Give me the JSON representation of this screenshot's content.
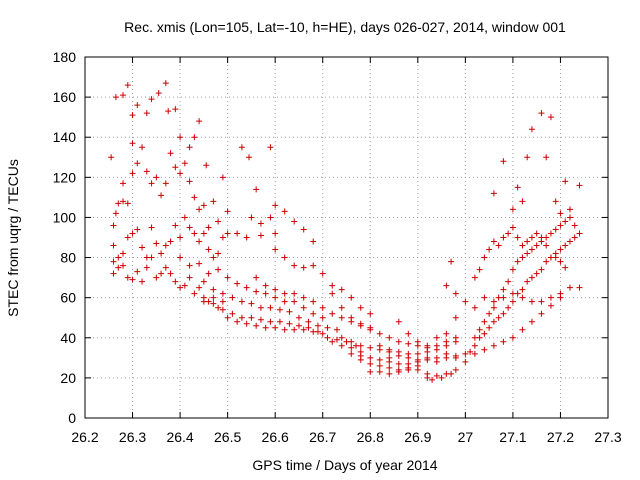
{
  "chart_data": {
    "type": "scatter",
    "title": "Rec. xmis (Lon=105, Lat=-10, h=HE), days 026-027, 2014, window 001",
    "xlabel": "GPS time / Days of year 2014",
    "ylabel": "STEC from uqrg / TECUs",
    "xlim": [
      26.2,
      27.3
    ],
    "ylim": [
      0,
      180
    ],
    "xticks": [
      "26.2",
      "26.3",
      "26.4",
      "26.5",
      "26.6",
      "26.7",
      "26.8",
      "26.9",
      "27",
      "27.1",
      "27.2",
      "27.3"
    ],
    "yticks": [
      "0",
      "20",
      "40",
      "60",
      "80",
      "100",
      "120",
      "140",
      "160",
      "180"
    ],
    "grid": true,
    "marker": "+",
    "color": "#cc0000",
    "points": [
      [
        26.255,
        130
      ],
      [
        26.265,
        160
      ],
      [
        26.28,
        161
      ],
      [
        26.29,
        166
      ],
      [
        26.3,
        151
      ],
      [
        26.3,
        137
      ],
      [
        26.31,
        156
      ],
      [
        26.33,
        152
      ],
      [
        26.34,
        159
      ],
      [
        26.355,
        162
      ],
      [
        26.37,
        167
      ],
      [
        26.375,
        153
      ],
      [
        26.39,
        154
      ],
      [
        26.4,
        140
      ],
      [
        26.42,
        135
      ],
      [
        26.43,
        140
      ],
      [
        26.44,
        148
      ],
      [
        26.455,
        126
      ],
      [
        26.47,
        108
      ],
      [
        26.49,
        120
      ],
      [
        26.5,
        103
      ],
      [
        26.53,
        135
      ],
      [
        26.545,
        130
      ],
      [
        26.56,
        114
      ],
      [
        26.59,
        135
      ],
      [
        26.5,
        92
      ],
      [
        26.52,
        92
      ],
      [
        26.54,
        90
      ],
      [
        26.57,
        91
      ],
      [
        26.6,
        92
      ],
      [
        26.26,
        96
      ],
      [
        26.26,
        86
      ],
      [
        26.265,
        102
      ],
      [
        26.27,
        107
      ],
      [
        26.28,
        117
      ],
      [
        26.28,
        108
      ],
      [
        26.29,
        107
      ],
      [
        26.3,
        122
      ],
      [
        26.31,
        127
      ],
      [
        26.32,
        135
      ],
      [
        26.33,
        123
      ],
      [
        26.34,
        117
      ],
      [
        26.35,
        120
      ],
      [
        26.36,
        111
      ],
      [
        26.37,
        117
      ],
      [
        26.38,
        132
      ],
      [
        26.39,
        125
      ],
      [
        26.4,
        122
      ],
      [
        26.41,
        127
      ],
      [
        26.42,
        118
      ],
      [
        26.43,
        110
      ],
      [
        26.44,
        104
      ],
      [
        26.45,
        106
      ],
      [
        26.46,
        95
      ],
      [
        26.48,
        98
      ],
      [
        26.26,
        78
      ],
      [
        26.27,
        80
      ],
      [
        26.28,
        76
      ],
      [
        26.29,
        90
      ],
      [
        26.3,
        92
      ],
      [
        26.31,
        94
      ],
      [
        26.32,
        85
      ],
      [
        26.33,
        80
      ],
      [
        26.34,
        95
      ],
      [
        26.35,
        87
      ],
      [
        26.36,
        82
      ],
      [
        26.37,
        86
      ],
      [
        26.38,
        88
      ],
      [
        26.39,
        96
      ],
      [
        26.4,
        90
      ],
      [
        26.41,
        100
      ],
      [
        26.42,
        95
      ],
      [
        26.43,
        92
      ],
      [
        26.44,
        88
      ],
      [
        26.45,
        92
      ],
      [
        26.46,
        84
      ],
      [
        26.47,
        80
      ],
      [
        26.48,
        82
      ],
      [
        26.49,
        90
      ],
      [
        26.26,
        72
      ],
      [
        26.27,
        75
      ],
      [
        26.28,
        82
      ],
      [
        26.29,
        70
      ],
      [
        26.3,
        69
      ],
      [
        26.31,
        73
      ],
      [
        26.32,
        68
      ],
      [
        26.33,
        75
      ],
      [
        26.34,
        80
      ],
      [
        26.35,
        70
      ],
      [
        26.36,
        72
      ],
      [
        26.37,
        75
      ],
      [
        26.38,
        72
      ],
      [
        26.39,
        68
      ],
      [
        26.4,
        65
      ],
      [
        26.41,
        66
      ],
      [
        26.42,
        70
      ],
      [
        26.43,
        62
      ],
      [
        26.44,
        65
      ],
      [
        26.45,
        60
      ],
      [
        26.46,
        58
      ],
      [
        26.47,
        60
      ],
      [
        26.48,
        55
      ],
      [
        26.49,
        58
      ],
      [
        26.4,
        80
      ],
      [
        26.42,
        76
      ],
      [
        26.44,
        77
      ],
      [
        26.46,
        72
      ],
      [
        26.48,
        74
      ],
      [
        26.5,
        70
      ],
      [
        26.52,
        67
      ],
      [
        26.54,
        65
      ],
      [
        26.56,
        63
      ],
      [
        26.58,
        62
      ],
      [
        26.6,
        60
      ],
      [
        26.62,
        58
      ],
      [
        26.64,
        58
      ],
      [
        26.66,
        55
      ],
      [
        26.68,
        52
      ],
      [
        26.7,
        50
      ],
      [
        26.45,
        68
      ],
      [
        26.47,
        64
      ],
      [
        26.49,
        62
      ],
      [
        26.51,
        60
      ],
      [
        26.53,
        58
      ],
      [
        26.55,
        57
      ],
      [
        26.57,
        55
      ],
      [
        26.59,
        55
      ],
      [
        26.61,
        54
      ],
      [
        26.63,
        53
      ],
      [
        26.65,
        50
      ],
      [
        26.67,
        48
      ],
      [
        26.69,
        46
      ],
      [
        26.71,
        45
      ],
      [
        26.73,
        44
      ],
      [
        26.45,
        58
      ],
      [
        26.47,
        57
      ],
      [
        26.49,
        54
      ],
      [
        26.51,
        52
      ],
      [
        26.53,
        50
      ],
      [
        26.55,
        50
      ],
      [
        26.57,
        49
      ],
      [
        26.59,
        48
      ],
      [
        26.61,
        48
      ],
      [
        26.63,
        47
      ],
      [
        26.65,
        46
      ],
      [
        26.67,
        45
      ],
      [
        26.69,
        43
      ],
      [
        26.71,
        40
      ],
      [
        26.73,
        39
      ],
      [
        26.75,
        38
      ],
      [
        26.77,
        36
      ],
      [
        26.5,
        50
      ],
      [
        26.52,
        48
      ],
      [
        26.54,
        47
      ],
      [
        26.56,
        46
      ],
      [
        26.58,
        45
      ],
      [
        26.6,
        45
      ],
      [
        26.62,
        44
      ],
      [
        26.64,
        44
      ],
      [
        26.66,
        44
      ],
      [
        26.68,
        43
      ],
      [
        26.7,
        42
      ],
      [
        26.72,
        38
      ],
      [
        26.74,
        36
      ],
      [
        26.76,
        35
      ],
      [
        26.78,
        33
      ],
      [
        26.55,
        100
      ],
      [
        26.57,
        97
      ],
      [
        26.59,
        100
      ],
      [
        26.6,
        106
      ],
      [
        26.62,
        103
      ],
      [
        26.64,
        98
      ],
      [
        26.66,
        94
      ],
      [
        26.68,
        88
      ],
      [
        26.6,
        84
      ],
      [
        26.62,
        80
      ],
      [
        26.64,
        76
      ],
      [
        26.66,
        75
      ],
      [
        26.68,
        76
      ],
      [
        26.7,
        72
      ],
      [
        26.72,
        66
      ],
      [
        26.74,
        64
      ],
      [
        26.76,
        60
      ],
      [
        26.78,
        55
      ],
      [
        26.8,
        52
      ],
      [
        26.56,
        70
      ],
      [
        26.58,
        66
      ],
      [
        26.6,
        64
      ],
      [
        26.62,
        62
      ],
      [
        26.64,
        62
      ],
      [
        26.66,
        60
      ],
      [
        26.68,
        58
      ],
      [
        26.7,
        55
      ],
      [
        26.72,
        52
      ],
      [
        26.74,
        50
      ],
      [
        26.76,
        48
      ],
      [
        26.78,
        46
      ],
      [
        26.8,
        44
      ],
      [
        26.72,
        62
      ],
      [
        26.74,
        55
      ],
      [
        26.76,
        50
      ],
      [
        26.78,
        47
      ],
      [
        26.8,
        45
      ],
      [
        26.82,
        42
      ],
      [
        26.84,
        40
      ],
      [
        26.86,
        38
      ],
      [
        26.88,
        37
      ],
      [
        26.9,
        36
      ],
      [
        26.92,
        35
      ],
      [
        26.94,
        36
      ],
      [
        26.96,
        38
      ],
      [
        26.98,
        40
      ],
      [
        26.74,
        40
      ],
      [
        26.76,
        38
      ],
      [
        26.78,
        36
      ],
      [
        26.8,
        35
      ],
      [
        26.82,
        34
      ],
      [
        26.84,
        33
      ],
      [
        26.86,
        33
      ],
      [
        26.88,
        32
      ],
      [
        26.9,
        32
      ],
      [
        26.92,
        33
      ],
      [
        26.94,
        34
      ],
      [
        26.96,
        36
      ],
      [
        26.98,
        38
      ],
      [
        26.76,
        32
      ],
      [
        26.78,
        31
      ],
      [
        26.8,
        30
      ],
      [
        26.82,
        29
      ],
      [
        26.84,
        28
      ],
      [
        26.86,
        27
      ],
      [
        26.88,
        27
      ],
      [
        26.9,
        28
      ],
      [
        26.92,
        29
      ],
      [
        26.94,
        30
      ],
      [
        26.96,
        32
      ],
      [
        26.78,
        29
      ],
      [
        26.8,
        27
      ],
      [
        26.82,
        26
      ],
      [
        26.84,
        25
      ],
      [
        26.86,
        24
      ],
      [
        26.88,
        24
      ],
      [
        26.9,
        24
      ],
      [
        26.92,
        22
      ],
      [
        26.94,
        21
      ],
      [
        26.96,
        22
      ],
      [
        26.98,
        24
      ],
      [
        26.8,
        23
      ],
      [
        26.82,
        23
      ],
      [
        26.84,
        22
      ],
      [
        26.86,
        23
      ],
      [
        26.88,
        25
      ],
      [
        26.9,
        26
      ],
      [
        26.92,
        20
      ],
      [
        26.93,
        19
      ],
      [
        26.95,
        20
      ],
      [
        26.97,
        22
      ],
      [
        26.82,
        36
      ],
      [
        26.84,
        34
      ],
      [
        26.86,
        48
      ],
      [
        26.88,
        42
      ],
      [
        26.9,
        38
      ],
      [
        26.92,
        36
      ],
      [
        26.94,
        40
      ],
      [
        26.96,
        42
      ],
      [
        26.98,
        50
      ],
      [
        26.84,
        30
      ],
      [
        26.86,
        31
      ],
      [
        26.88,
        30
      ],
      [
        26.9,
        29
      ],
      [
        26.92,
        30
      ],
      [
        26.94,
        28
      ],
      [
        26.96,
        30
      ],
      [
        26.98,
        31
      ],
      [
        26.96,
        66
      ],
      [
        26.97,
        78
      ],
      [
        26.98,
        62
      ],
      [
        27.0,
        58
      ],
      [
        27.02,
        55
      ],
      [
        27.04,
        60
      ],
      [
        27.06,
        58
      ],
      [
        27.08,
        60
      ],
      [
        27.1,
        62
      ],
      [
        27.12,
        60
      ],
      [
        27.14,
        58
      ],
      [
        27.16,
        58
      ],
      [
        27.18,
        60
      ],
      [
        27.2,
        62
      ],
      [
        27.22,
        65
      ],
      [
        27.24,
        65
      ],
      [
        27.0,
        32
      ],
      [
        27.01,
        33
      ],
      [
        27.02,
        36
      ],
      [
        27.03,
        40
      ],
      [
        27.04,
        42
      ],
      [
        27.05,
        45
      ],
      [
        27.06,
        48
      ],
      [
        27.07,
        50
      ],
      [
        27.08,
        52
      ],
      [
        27.09,
        55
      ],
      [
        27.1,
        58
      ],
      [
        27.11,
        62
      ],
      [
        27.12,
        64
      ],
      [
        27.13,
        68
      ],
      [
        27.14,
        70
      ],
      [
        27.15,
        72
      ],
      [
        27.16,
        74
      ],
      [
        27.17,
        78
      ],
      [
        27.18,
        80
      ],
      [
        27.19,
        80
      ],
      [
        27.2,
        84
      ],
      [
        27.21,
        86
      ],
      [
        27.22,
        88
      ],
      [
        27.23,
        90
      ],
      [
        27.24,
        92
      ],
      [
        27.02,
        40
      ],
      [
        27.03,
        44
      ],
      [
        27.04,
        48
      ],
      [
        27.05,
        52
      ],
      [
        27.06,
        55
      ],
      [
        27.07,
        60
      ],
      [
        27.08,
        64
      ],
      [
        27.09,
        68
      ],
      [
        27.1,
        74
      ],
      [
        27.11,
        78
      ],
      [
        27.12,
        80
      ],
      [
        27.13,
        82
      ],
      [
        27.14,
        84
      ],
      [
        27.15,
        86
      ],
      [
        27.16,
        88
      ],
      [
        27.17,
        90
      ],
      [
        27.18,
        92
      ],
      [
        27.19,
        94
      ],
      [
        27.2,
        96
      ],
      [
        27.21,
        98
      ],
      [
        27.22,
        100
      ],
      [
        27.02,
        70
      ],
      [
        27.03,
        74
      ],
      [
        27.04,
        80
      ],
      [
        27.05,
        84
      ],
      [
        27.06,
        88
      ],
      [
        27.07,
        86
      ],
      [
        27.08,
        90
      ],
      [
        27.09,
        92
      ],
      [
        27.1,
        95
      ],
      [
        27.11,
        90
      ],
      [
        27.12,
        86
      ],
      [
        27.13,
        88
      ],
      [
        27.14,
        90
      ],
      [
        27.15,
        92
      ],
      [
        27.16,
        90
      ],
      [
        27.17,
        86
      ],
      [
        27.18,
        80
      ],
      [
        27.19,
        82
      ],
      [
        27.2,
        78
      ],
      [
        27.21,
        75
      ],
      [
        27.06,
        112
      ],
      [
        27.08,
        128
      ],
      [
        27.1,
        104
      ],
      [
        27.11,
        115
      ],
      [
        27.12,
        108
      ],
      [
        27.13,
        130
      ],
      [
        27.14,
        144
      ],
      [
        27.16,
        152
      ],
      [
        27.17,
        130
      ],
      [
        27.18,
        150
      ],
      [
        27.19,
        108
      ],
      [
        27.2,
        102
      ],
      [
        27.21,
        118
      ],
      [
        27.22,
        104
      ],
      [
        27.23,
        96
      ],
      [
        27.24,
        116
      ],
      [
        26.98,
        30
      ],
      [
        27.0,
        28
      ],
      [
        27.02,
        32
      ],
      [
        27.04,
        34
      ],
      [
        27.06,
        36
      ],
      [
        27.08,
        38
      ],
      [
        27.1,
        40
      ],
      [
        27.12,
        44
      ],
      [
        27.14,
        48
      ],
      [
        27.16,
        52
      ],
      [
        27.18,
        56
      ],
      [
        27.2,
        60
      ]
    ]
  }
}
